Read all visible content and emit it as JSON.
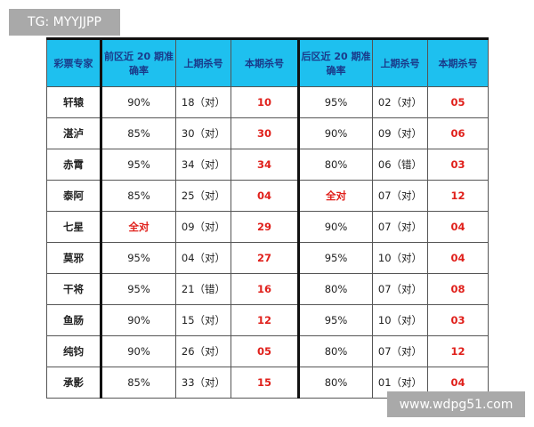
{
  "watermark_top": "TG: MYYJJPP",
  "watermark_bottom": "www.wdpg51.com",
  "headers": [
    "彩票专家",
    "前区近 20 期准确率",
    "上期杀号",
    "本期杀号",
    "后区近 20 期准确率",
    "上期杀号",
    "本期杀号"
  ],
  "rows": [
    [
      "轩辕",
      "90%",
      "18（对）",
      "10",
      "95%",
      "02（对）",
      "05"
    ],
    [
      "湛泸",
      "85%",
      "30（对）",
      "30",
      "90%",
      "09（对）",
      "06"
    ],
    [
      "赤霄",
      "95%",
      "34（对）",
      "34",
      "80%",
      "06（错）",
      "03"
    ],
    [
      "泰阿",
      "85%",
      "25（对）",
      "04",
      "全对",
      "07（对）",
      "12"
    ],
    [
      "七星",
      "全对",
      "09（对）",
      "29",
      "90%",
      "07（对）",
      "04"
    ],
    [
      "莫邪",
      "95%",
      "04（对）",
      "27",
      "95%",
      "10（对）",
      "04"
    ],
    [
      "干将",
      "95%",
      "21（错）",
      "16",
      "80%",
      "07（对）",
      "08"
    ],
    [
      "鱼肠",
      "90%",
      "15（对）",
      "12",
      "95%",
      "10（对）",
      "03"
    ],
    [
      "纯钧",
      "90%",
      "26（对）",
      "05",
      "80%",
      "07（对）",
      "12"
    ],
    [
      "承影",
      "85%",
      "33（对）",
      "15",
      "80%",
      "01（对）",
      "04"
    ]
  ],
  "colors": {
    "header_bg": "#1ec0ef",
    "highlight": "#e0201b"
  }
}
